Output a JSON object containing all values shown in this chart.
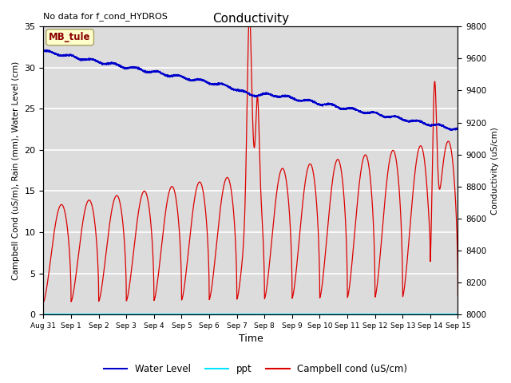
{
  "title": "Conductivity",
  "top_left_text": "No data for f_cond_HYDROS",
  "annotation_box": "MB_tule",
  "xlabel": "Time",
  "ylabel_left": "Campbell Cond (uS/m), Rain (mm), Water Level (cm)",
  "ylabel_right": "Conductivity (uS/cm)",
  "xlim_days": [
    0,
    15
  ],
  "ylim_left": [
    0,
    35
  ],
  "ylim_right": [
    8000,
    9800
  ],
  "x_tick_labels": [
    "Aug 31",
    "Sep 1",
    "Sep 2",
    "Sep 3",
    "Sep 4",
    "Sep 5",
    "Sep 6",
    "Sep 7",
    "Sep 8",
    "Sep 9",
    "Sep 10",
    "Sep 11",
    "Sep 12",
    "Sep 13",
    "Sep 14",
    "Sep 15"
  ],
  "background_color": "#dcdcdc",
  "axes_bg_color": "#dcdcdc",
  "water_level_color": "#0000cc",
  "ppt_color": "#00e5ff",
  "campbell_color": "#dd0000",
  "legend_entries": [
    "Water Level",
    "ppt",
    "Campbell cond (uS/cm)"
  ],
  "grid_color": "#ffffff",
  "fig_width": 6.4,
  "fig_height": 4.8,
  "dpi": 100
}
